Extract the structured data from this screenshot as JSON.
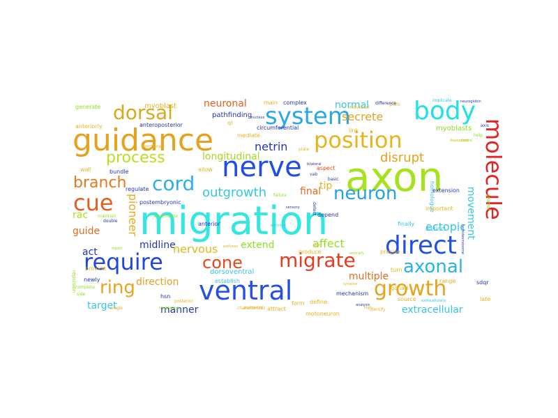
{
  "words": [
    {
      "text": "migration",
      "color": "#33e6e0"
    },
    {
      "text": "axon",
      "color": "#a6e21f"
    },
    {
      "text": "guidance",
      "color": "#e6a21c"
    },
    {
      "text": "nerve",
      "color": "#1f4de6"
    },
    {
      "text": "ventral",
      "color": "#2550e0"
    },
    {
      "text": "system",
      "color": "#29a8e6"
    },
    {
      "text": "body",
      "color": "#22e0e6"
    },
    {
      "text": "position",
      "color": "#e6b41c"
    },
    {
      "text": "dorsal",
      "color": "#d9a81f"
    },
    {
      "text": "require",
      "color": "#2147e0"
    },
    {
      "text": "direct",
      "color": "#2250e6"
    },
    {
      "text": "molecule",
      "color": "#e62222"
    },
    {
      "text": "cue",
      "color": "#e65f1c"
    },
    {
      "text": "cord",
      "color": "#2ab0e6"
    },
    {
      "text": "neuron",
      "color": "#29a0e6"
    },
    {
      "text": "migrate",
      "color": "#e63a22"
    },
    {
      "text": "growth",
      "color": "#e6a31c"
    },
    {
      "text": "ring",
      "color": "#e6a41c"
    },
    {
      "text": "axonal",
      "color": "#29b2e6"
    },
    {
      "text": "cone",
      "color": "#e6471c"
    },
    {
      "text": "process",
      "color": "#b8e01f"
    },
    {
      "text": "branch",
      "color": "#e67a1c"
    },
    {
      "text": "outgrowth",
      "color": "#33c7e6"
    },
    {
      "text": "netrin",
      "color": "#2235b0"
    },
    {
      "text": "disrupt",
      "color": "#e6a01c"
    },
    {
      "text": "longitudinal",
      "color": "#a8d81f"
    },
    {
      "text": "secrete",
      "color": "#e6a21c"
    },
    {
      "text": "normal",
      "color": "#33c4e0"
    },
    {
      "text": "neuronal",
      "color": "#e65e1c"
    },
    {
      "text": "final",
      "color": "#e66a1c"
    },
    {
      "text": "tip",
      "color": "#e6b21c"
    },
    {
      "text": "guide",
      "color": "#e66a1c"
    },
    {
      "text": "rac",
      "color": "#a8e01f"
    },
    {
      "text": "pioneer",
      "color": "#e6a81c"
    },
    {
      "text": "ectopic",
      "color": "#33c6e6"
    },
    {
      "text": "movement",
      "color": "#33c8e6"
    },
    {
      "text": "midline",
      "color": "#2235b0"
    },
    {
      "text": "nervous",
      "color": "#e6b81c"
    },
    {
      "text": "extend",
      "color": "#8fe01f"
    },
    {
      "text": "affect",
      "color": "#8fe01f"
    },
    {
      "text": "act",
      "color": "#2235b0"
    },
    {
      "text": "direction",
      "color": "#e6a01c"
    },
    {
      "text": "multiple",
      "color": "#e66a1c"
    },
    {
      "text": "manner",
      "color": "#2235b0"
    },
    {
      "text": "target",
      "color": "#33c4e6"
    },
    {
      "text": "extracellular",
      "color": "#33c4e6"
    },
    {
      "text": "establish",
      "color": "#33c4e6"
    },
    {
      "text": "mechanism",
      "color": "#2235b0"
    },
    {
      "text": "dorsoventral",
      "color": "#33c4e6"
    },
    {
      "text": "anteroposterior",
      "color": "#2235b0"
    },
    {
      "text": "circumferential",
      "color": "#2235b0"
    },
    {
      "text": "pathfinding",
      "color": "#2235b0"
    },
    {
      "text": "myoblast",
      "color": "#e6b21c"
    },
    {
      "text": "myoblasts",
      "color": "#8fe01f"
    },
    {
      "text": "generate",
      "color": "#8fe01f"
    },
    {
      "text": "anteriorly",
      "color": "#e6b21c"
    },
    {
      "text": "complex",
      "color": "#2235b0"
    },
    {
      "text": "main",
      "color": "#e6b21c"
    },
    {
      "text": "plm",
      "color": "#e6b21c"
    },
    {
      "text": "link",
      "color": "#e6b21c"
    },
    {
      "text": "finally",
      "color": "#33c4e6"
    },
    {
      "text": "homologue",
      "color": "#33c4e6"
    },
    {
      "text": "extension",
      "color": "#2235b0"
    },
    {
      "text": "distinct",
      "color": "#33c4e6"
    },
    {
      "text": "important",
      "color": "#e6b21c"
    },
    {
      "text": "range",
      "color": "#e6b21c"
    },
    {
      "text": "sdqr",
      "color": "#2235b0"
    },
    {
      "text": "late",
      "color": "#e6b21c"
    },
    {
      "text": "gonad",
      "color": "#e6b21c"
    },
    {
      "text": "source",
      "color": "#e6b21c"
    },
    {
      "text": "aspect",
      "color": "#e6471c"
    },
    {
      "text": "produce",
      "color": "#e6b21c"
    },
    {
      "text": "precise",
      "color": "#e6b21c"
    },
    {
      "text": "define",
      "color": "#e6b21c"
    },
    {
      "text": "hsn",
      "color": "#2235b0"
    },
    {
      "text": "provide",
      "color": "#e6b21c"
    },
    {
      "text": "newly",
      "color": "#2235b0"
    },
    {
      "text": "regulate",
      "color": "#2235b0"
    },
    {
      "text": "postembryonic",
      "color": "#2235b0"
    },
    {
      "text": "bundle",
      "color": "#2235b0"
    },
    {
      "text": "anterior",
      "color": "#2235b0"
    },
    {
      "text": "allow",
      "color": "#e6b21c"
    },
    {
      "text": "depend",
      "color": "#2235b0"
    },
    {
      "text": "mediate",
      "color": "#e6b21c"
    },
    {
      "text": "attract",
      "color": "#e6b21c"
    },
    {
      "text": "motoneuron",
      "color": "#e6b21c"
    },
    {
      "text": "identify",
      "color": "#e6b21c"
    },
    {
      "text": "difference",
      "color": "#2235b0"
    },
    {
      "text": "individual",
      "color": "#e6b21c"
    },
    {
      "text": "implicate",
      "color": "#33c4e6"
    },
    {
      "text": "ql",
      "color": "#e6b21c"
    },
    {
      "text": "repulsion",
      "color": "#8fe01f"
    },
    {
      "text": "migrating",
      "color": "#8fe01f"
    },
    {
      "text": "characteristic",
      "color": "#e6b21c"
    },
    {
      "text": "functional",
      "color": "#e6b21c"
    },
    {
      "text": "wall",
      "color": "#e6b21c"
    },
    {
      "text": "posteriorly",
      "color": "#e6b21c"
    },
    {
      "text": "turn",
      "color": "#e6b21c"
    },
    {
      "text": "form",
      "color": "#e6b21c"
    },
    {
      "text": "animal",
      "color": "#8fe01f"
    },
    {
      "text": "failure",
      "color": "#8fe01f"
    },
    {
      "text": "detect",
      "color": "#2235b0"
    },
    {
      "text": "accumulate",
      "color": "#8fe01f"
    },
    {
      "text": "nucleus",
      "color": "#2235b0"
    },
    {
      "text": "plate",
      "color": "#e6b21c"
    },
    {
      "text": "maintain",
      "color": "#8fe01f"
    },
    {
      "text": "double",
      "color": "#2235b0"
    },
    {
      "text": "complete",
      "color": "#8fe01f"
    },
    {
      "text": "single",
      "color": "#e6b21c"
    },
    {
      "text": "side",
      "color": "#8fe01f"
    },
    {
      "text": "posterior",
      "color": "#e6b21c"
    },
    {
      "text": "axis",
      "color": "#2235b0"
    },
    {
      "text": "help",
      "color": "#8fe01f"
    },
    {
      "text": "basic",
      "color": "#2235b0"
    },
    {
      "text": "vab",
      "color": "#2235b0"
    },
    {
      "text": "sensory",
      "color": "#2235b0"
    },
    {
      "text": "bilateral",
      "color": "#2235b0"
    },
    {
      "text": "enriched",
      "color": "#33c4e6"
    },
    {
      "text": "glia",
      "color": "#e6b21c"
    },
    {
      "text": "report",
      "color": "#8fe01f"
    },
    {
      "text": "ventrally",
      "color": "#8fe01f"
    },
    {
      "text": "control",
      "color": "#8fe01f"
    },
    {
      "text": "pathway",
      "color": "#e6b21c"
    },
    {
      "text": "neuroglobin",
      "color": "#2235b0"
    },
    {
      "text": "hemidesmosome",
      "color": "#2235b0"
    },
    {
      "text": "analysis",
      "color": "#2235b0"
    },
    {
      "text": "tyrosine",
      "color": "#e6b21c"
    },
    {
      "text": "high",
      "color": "#e6b21c"
    },
    {
      "text": "dependent",
      "color": "#e6b21c"
    },
    {
      "text": "extracellularly",
      "color": "#33c4e6"
    }
  ]
}
